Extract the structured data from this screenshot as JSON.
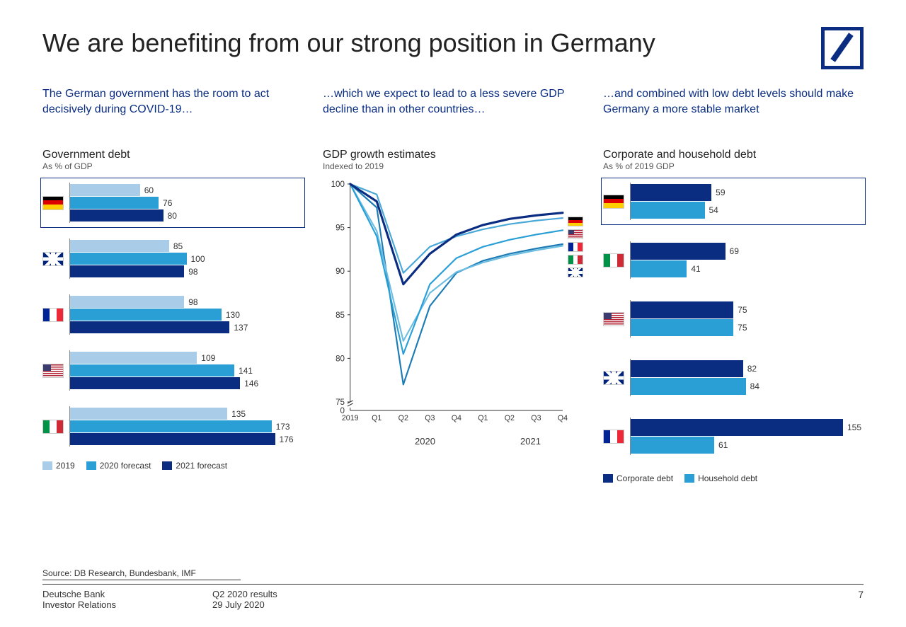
{
  "title": "We are benefiting from our strong position in Germany",
  "columns": {
    "left": {
      "heading": "The German government has the room to act decisively during COVID-19…",
      "chart_title": "Government debt",
      "chart_sub": "As % of GDP",
      "max_value": 200,
      "series_colors": [
        "#a9cde8",
        "#2a9fd6",
        "#0a2d82"
      ],
      "series_labels": [
        "2019",
        "2020 forecast",
        "2021 forecast"
      ],
      "rows": [
        {
          "flag": "de",
          "highlight": true,
          "values": [
            60,
            76,
            80
          ]
        },
        {
          "flag": "uk",
          "highlight": false,
          "values": [
            85,
            100,
            98
          ]
        },
        {
          "flag": "fr",
          "highlight": false,
          "values": [
            98,
            130,
            137
          ]
        },
        {
          "flag": "us",
          "highlight": false,
          "values": [
            109,
            141,
            146
          ]
        },
        {
          "flag": "it",
          "highlight": false,
          "values": [
            135,
            173,
            176
          ]
        }
      ]
    },
    "middle": {
      "heading": "…which we expect to lead to a less severe GDP decline than in other countries…",
      "chart_title": "GDP growth estimates",
      "chart_sub": "Indexed to 2019",
      "ymin": 75,
      "ymax": 100,
      "ytick_step": 5,
      "x_labels": [
        "2019",
        "Q1",
        "Q2",
        "Q3",
        "Q4",
        "Q1",
        "Q2",
        "Q3",
        "Q4"
      ],
      "year_labels": [
        "2020",
        "2021"
      ],
      "line_colors": {
        "de": "#0a2d82",
        "us": "#4aa8d8",
        "fr": "#2a9fd6",
        "it": "#6cbde2",
        "uk": "#1c7bb5"
      },
      "line_width": 2.2,
      "de_line_width": 3.2,
      "flag_order": [
        "de",
        "us",
        "fr",
        "it",
        "uk"
      ],
      "series": {
        "de": [
          100,
          98.0,
          88.5,
          92.0,
          94.2,
          95.3,
          96.0,
          96.4,
          96.7
        ],
        "us": [
          100,
          98.8,
          89.8,
          92.8,
          94.0,
          94.8,
          95.4,
          95.8,
          96.1
        ],
        "fr": [
          100,
          94.0,
          80.5,
          88.5,
          91.5,
          92.8,
          93.6,
          94.2,
          94.7
        ],
        "it": [
          100,
          94.6,
          82.0,
          87.5,
          89.9,
          91.0,
          91.8,
          92.4,
          92.9
        ],
        "uk": [
          100,
          97.3,
          77.0,
          86.0,
          89.8,
          91.2,
          92.0,
          92.6,
          93.1
        ]
      }
    },
    "right": {
      "heading": "…and combined with low debt levels should make Germany a more stable market",
      "chart_title": "Corporate and household debt",
      "chart_sub": "As % of 2019 GDP",
      "max_value": 170,
      "series_colors": [
        "#0a2d82",
        "#2a9fd6"
      ],
      "series_labels": [
        "Corporate debt",
        "Household debt"
      ],
      "rows": [
        {
          "flag": "de",
          "highlight": true,
          "values": [
            59,
            54
          ]
        },
        {
          "flag": "it",
          "highlight": false,
          "values": [
            69,
            41
          ]
        },
        {
          "flag": "us",
          "highlight": false,
          "values": [
            75,
            75
          ]
        },
        {
          "flag": "uk",
          "highlight": false,
          "values": [
            82,
            84
          ]
        },
        {
          "flag": "fr",
          "highlight": false,
          "values": [
            155,
            61
          ]
        }
      ]
    }
  },
  "source": "Source: DB Research, Bundesbank, IMF",
  "footer": {
    "org1": "Deutsche Bank",
    "org2": "Investor Relations",
    "mid1": "Q2 2020 results",
    "mid2": "29 July 2020",
    "page": "7"
  },
  "styling": {
    "title_color": "#222222",
    "heading_color": "#0a2d82",
    "background": "#ffffff",
    "font_family": "Arial"
  }
}
